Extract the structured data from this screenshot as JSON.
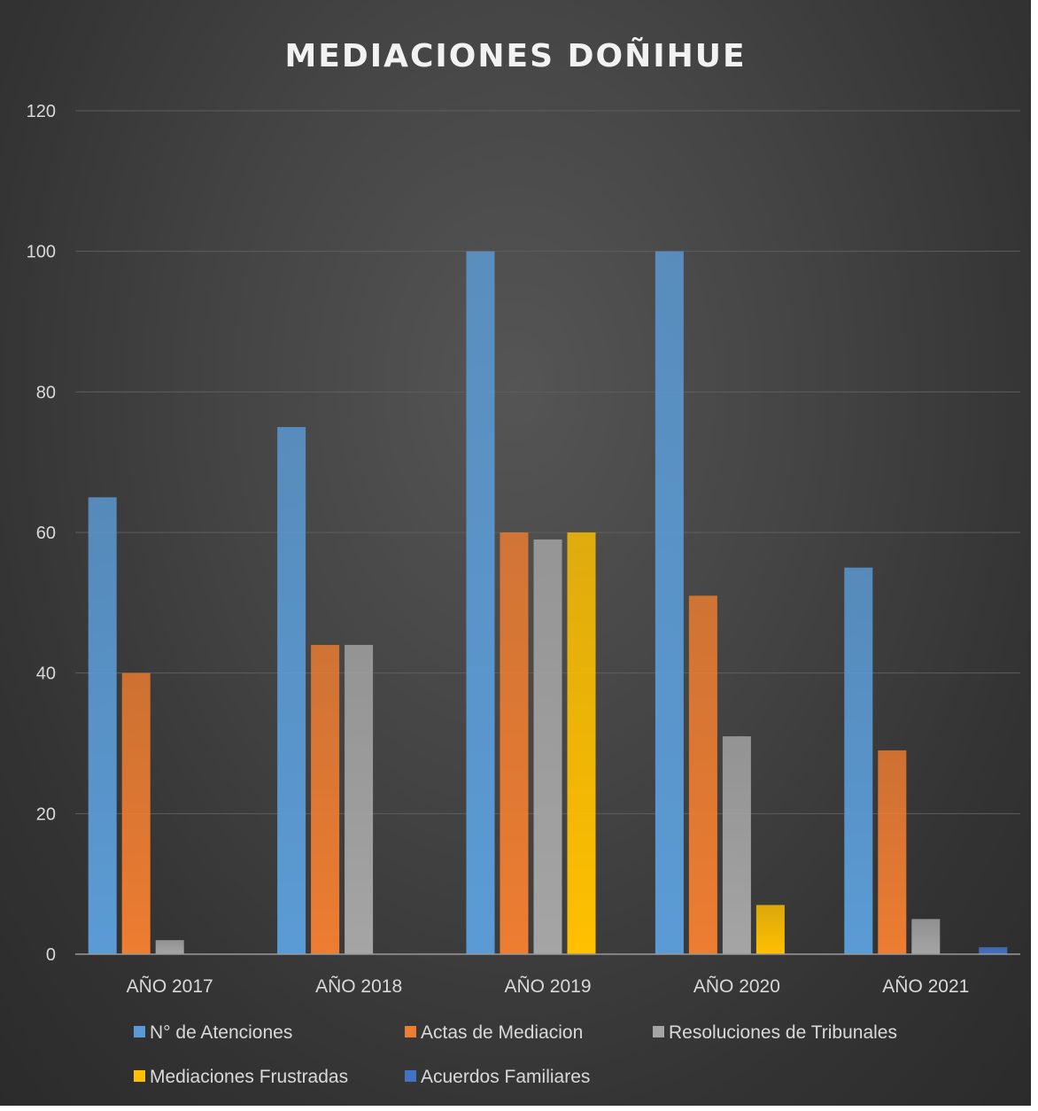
{
  "chart_data": {
    "type": "bar",
    "title": "MEDIACIONES DOÑIHUE",
    "xlabel": "",
    "ylabel": "",
    "categories": [
      "AÑO 2017",
      "AÑO 2018",
      "AÑO 2019",
      "AÑO 2020",
      "AÑO 2021"
    ],
    "ylim": [
      0,
      120
    ],
    "yticks": [
      "0",
      "20",
      "40",
      "60",
      "80",
      "100",
      "120"
    ],
    "grid": true,
    "legend_position": "bottom",
    "series": [
      {
        "name": "N° de Atenciones",
        "color": "#5b9bd5",
        "values": [
          65,
          75,
          100,
          100,
          55
        ]
      },
      {
        "name": "Actas de Mediacion",
        "color": "#ed7d31",
        "values": [
          40,
          44,
          60,
          51,
          29
        ]
      },
      {
        "name": "Resoluciones de Tribunales",
        "color": "#a5a5a5",
        "values": [
          2,
          44,
          59,
          31,
          5
        ]
      },
      {
        "name": "Mediaciones Frustradas",
        "color": "#ffc000",
        "values": [
          0,
          0,
          60,
          7,
          0
        ]
      },
      {
        "name": "Acuerdos Familiares",
        "color": "#4472c4",
        "values": [
          0,
          0,
          0,
          0,
          1
        ]
      }
    ]
  }
}
